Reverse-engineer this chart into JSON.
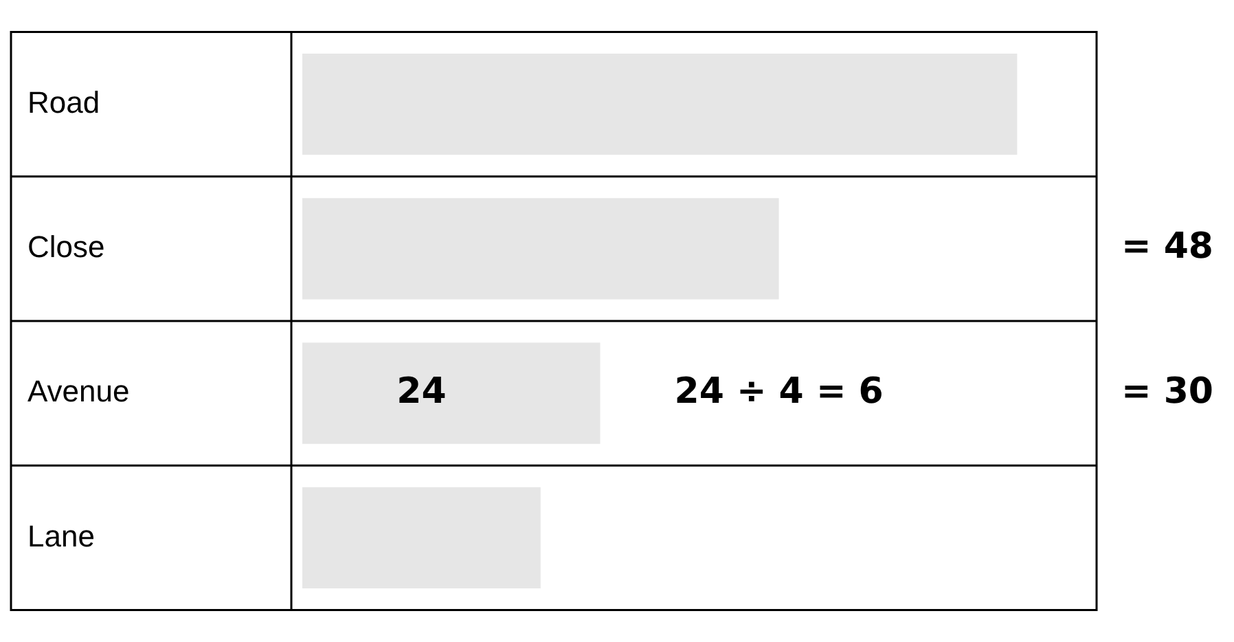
{
  "chart_data": {
    "type": "bar",
    "orientation": "horizontal",
    "categories": [
      "Road",
      "Close",
      "Avenue",
      "Lane"
    ],
    "values": [
      72,
      48,
      30,
      24
    ],
    "color": "#e6e6e6",
    "value_labels": [
      null,
      "= 48",
      "= 30",
      null
    ],
    "annotations": [
      "24",
      "24 ÷ 4 = 6"
    ],
    "tick_labels": "y",
    "grid": "y",
    "legend": false
  }
}
